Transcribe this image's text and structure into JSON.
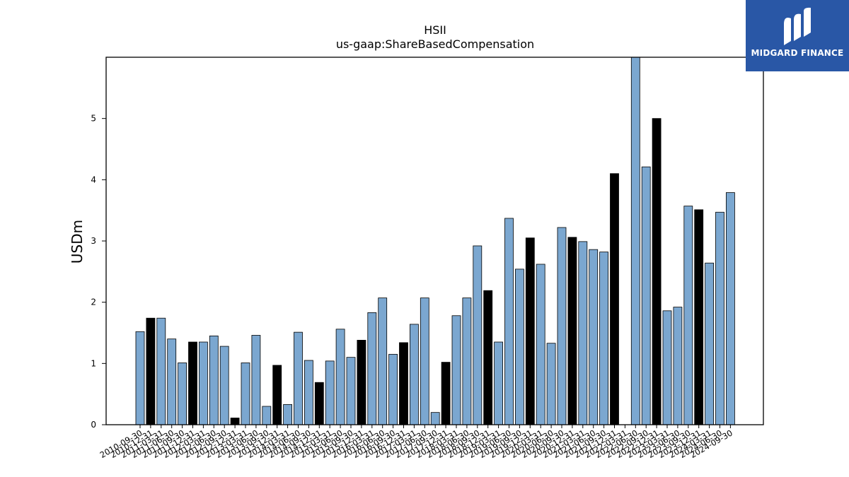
{
  "chart_data": {
    "type": "bar",
    "title": "HSII",
    "subtitle": "us-gaap:ShareBasedCompensation",
    "xlabel": "",
    "ylabel": "USDm",
    "ylim": [
      0,
      6
    ],
    "yticks": [
      0,
      1,
      2,
      3,
      4,
      5
    ],
    "grid": false,
    "legend": "none",
    "colors": {
      "quarter": "#7ba7d0",
      "annual": "#000000",
      "edge": "#000000"
    },
    "categories": [
      "2010-09-30",
      "2010-12-31",
      "2011-03-31",
      "2011-06-30",
      "2011-09-30",
      "2011-12-31",
      "2012-03-31",
      "2012-06-30",
      "2012-09-30",
      "2012-12-31",
      "2013-03-31",
      "2013-06-30",
      "2013-09-30",
      "2013-12-31",
      "2014-03-31",
      "2014-06-30",
      "2014-09-30",
      "2014-12-31",
      "2015-03-31",
      "2015-06-30",
      "2015-09-30",
      "2015-12-31",
      "2016-03-31",
      "2016-06-30",
      "2016-09-30",
      "2016-12-31",
      "2017-03-31",
      "2017-06-30",
      "2017-09-30",
      "2017-12-31",
      "2018-03-31",
      "2018-06-30",
      "2018-09-30",
      "2018-12-31",
      "2019-03-31",
      "2019-06-30",
      "2019-09-30",
      "2019-12-31",
      "2020-03-31",
      "2020-06-30",
      "2020-09-30",
      "2020-12-31",
      "2021-03-31",
      "2021-06-30",
      "2021-09-30",
      "2021-12-31",
      "2022-03-31",
      "2022-06-30",
      "2022-09-30",
      "2022-12-31",
      "2023-03-31",
      "2023-06-30",
      "2023-09-30",
      "2023-12-31",
      "2024-03-31",
      "2024-06-30",
      "2024-09-30"
    ],
    "values": [
      1.52,
      1.74,
      1.74,
      1.4,
      1.01,
      1.35,
      1.35,
      1.45,
      1.28,
      0.11,
      1.01,
      1.46,
      0.3,
      0.97,
      0.33,
      1.51,
      1.05,
      0.69,
      1.04,
      1.56,
      1.1,
      1.38,
      1.83,
      2.07,
      1.15,
      1.34,
      1.64,
      2.07,
      0.2,
      1.02,
      1.78,
      2.07,
      2.92,
      2.19,
      1.35,
      3.37,
      2.54,
      3.05,
      2.62,
      1.33,
      3.22,
      3.06,
      2.99,
      2.86,
      2.82,
      4.1,
      null,
      6.0,
      4.21,
      5.0,
      1.86,
      1.92,
      3.57,
      3.51,
      2.64,
      3.47,
      3.79
    ],
    "annual_flags": [
      false,
      true,
      false,
      false,
      false,
      true,
      false,
      false,
      false,
      true,
      false,
      false,
      false,
      true,
      false,
      false,
      false,
      true,
      false,
      false,
      false,
      true,
      false,
      false,
      false,
      true,
      false,
      false,
      false,
      true,
      false,
      false,
      false,
      true,
      false,
      false,
      false,
      true,
      false,
      false,
      false,
      true,
      false,
      false,
      false,
      true,
      false,
      false,
      false,
      true,
      false,
      false,
      false,
      true,
      false,
      false,
      false
    ]
  },
  "watermark": {
    "text": "MIDGARD FINANCE",
    "background": "#2957a6"
  }
}
